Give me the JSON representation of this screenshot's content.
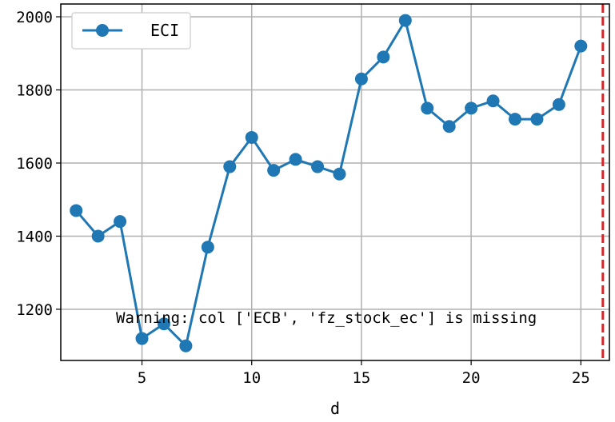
{
  "chart_data": {
    "type": "line",
    "title": "",
    "xlabel": "d",
    "ylabel": "",
    "xlim": [
      1.3,
      26.3
    ],
    "ylim": [
      1060,
      2035
    ],
    "x_ticks": [
      5,
      10,
      15,
      20,
      25
    ],
    "y_ticks": [
      1200,
      1400,
      1600,
      1800,
      2000
    ],
    "grid": true,
    "legend": "top-left",
    "series": [
      {
        "name": "ECI",
        "color": "#1f77b4",
        "marker": "circle",
        "x": [
          2,
          3,
          4,
          5,
          6,
          7,
          8,
          9,
          10,
          11,
          12,
          13,
          14,
          15,
          16,
          17,
          18,
          19,
          20,
          21,
          22,
          23,
          24,
          25
        ],
        "y": [
          1470,
          1400,
          1440,
          1120,
          1160,
          1100,
          1370,
          1590,
          1670,
          1580,
          1610,
          1590,
          1570,
          1830,
          1890,
          1990,
          1750,
          1700,
          1750,
          1770,
          1720,
          1720,
          1760,
          1920
        ]
      }
    ],
    "vline": {
      "x": 26,
      "color": "#d62728",
      "style": "dashed"
    },
    "annotation": "Warning: col ['ECB', 'fz_stock_ec'] is missing"
  }
}
